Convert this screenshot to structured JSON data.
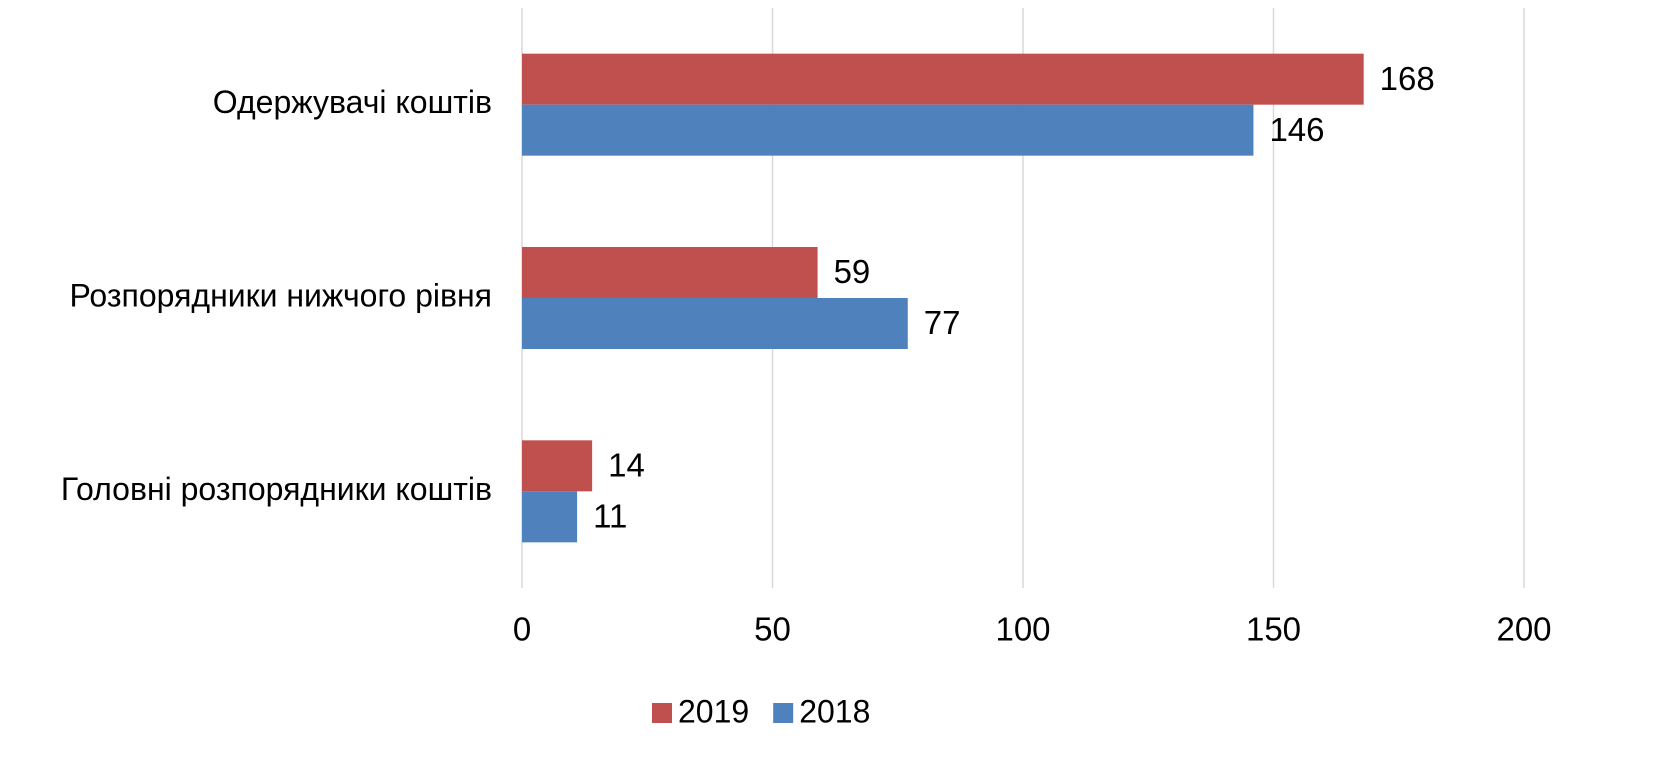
{
  "chart_data": {
    "type": "bar",
    "orientation": "horizontal",
    "categories": [
      "Одержувачі коштів",
      "Розпорядники нижчого рівня",
      "Головні розпорядники коштів"
    ],
    "series": [
      {
        "name": "2019",
        "color": "#c0504d",
        "values": [
          168,
          59,
          14
        ]
      },
      {
        "name": "2018",
        "color": "#4f81bd",
        "values": [
          146,
          77,
          11
        ]
      }
    ],
    "xlim": [
      0,
      200
    ],
    "xticks": [
      0,
      50,
      100,
      150,
      200
    ],
    "grid": true,
    "legend": "bottom"
  }
}
